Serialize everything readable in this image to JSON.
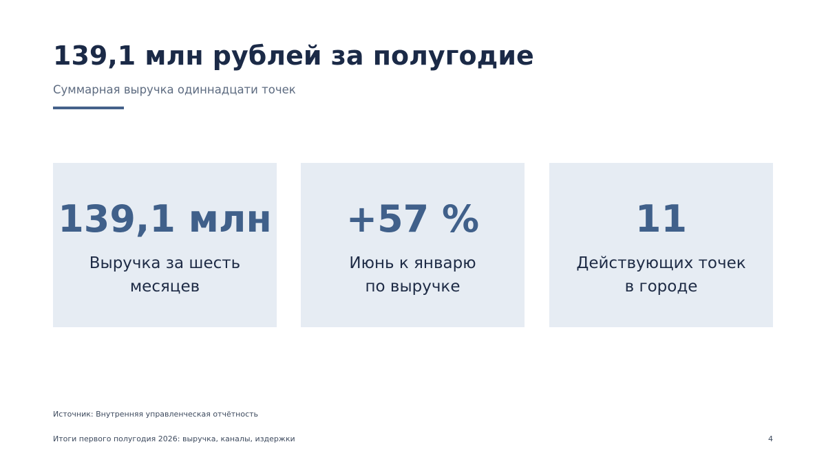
{
  "slide": {
    "title": "139,1 млн рублей за полугодие",
    "subtitle": "Суммарная выручка одиннадцати точек",
    "accent_color": "#44618a"
  },
  "kpi_cards": [
    {
      "value": "139,1 млн",
      "label_line1": "Выручка за шесть",
      "label_line2": "месяцев"
    },
    {
      "value": "+57 %",
      "label_line1": "Июнь к январю",
      "label_line2": "по выручке"
    },
    {
      "value": "11",
      "label_line1": "Действующих точек",
      "label_line2": "в городе"
    }
  ],
  "source": "Источник: Внутренняя управленческая отчётность",
  "footer": {
    "text": "Итоги первого полугодия 2026: выручка, каналы, издержки",
    "page_number": "4"
  },
  "colors": {
    "title": "#1b2a47",
    "card_background": "#e6ecf3",
    "card_value": "#40608a"
  }
}
